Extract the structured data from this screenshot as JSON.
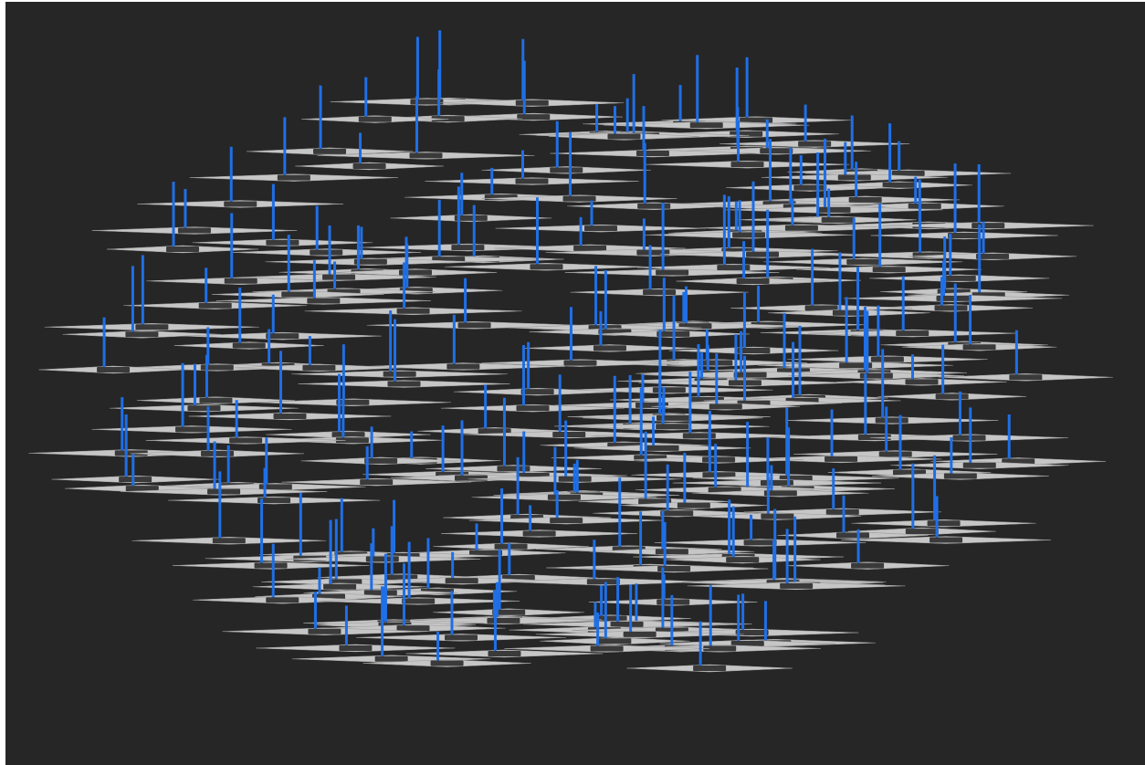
{
  "scene": {
    "background": "#262626",
    "disc_color": "#c6c6c6",
    "stem_color": "#1f6fe6",
    "label_color": "#3a3a3a"
  }
}
